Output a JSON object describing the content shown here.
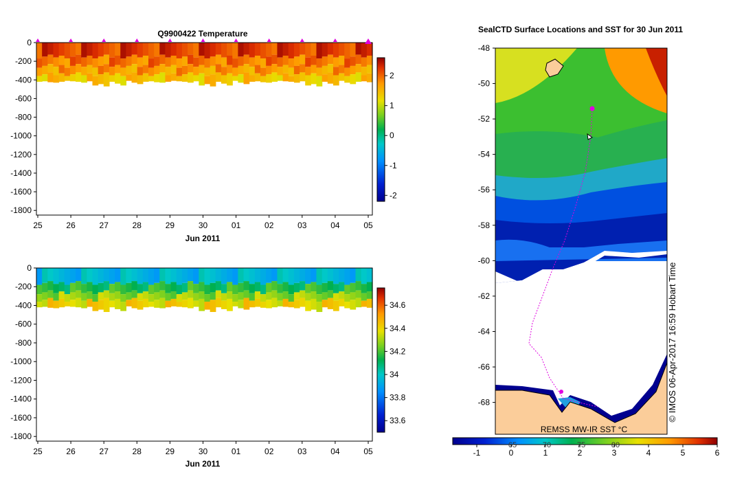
{
  "chart_data": [
    {
      "type": "heatmap",
      "title": "Q9900422  Temperature",
      "xlabel": "Jun 2011",
      "x_ticks": [
        "25",
        "26",
        "27",
        "28",
        "29",
        "30",
        "01",
        "02",
        "03",
        "04",
        "05"
      ],
      "y_ticks": [
        "0",
        "-200",
        "-400",
        "-600",
        "-800",
        "-1000",
        "-1200",
        "-1400",
        "-1600",
        "-1800"
      ],
      "ylim": [
        -1850,
        0
      ],
      "colorbar_ticks": [
        "2",
        "1",
        "0",
        "-1",
        "-2"
      ],
      "colorbar_range": [
        -2.2,
        2.6
      ],
      "profile_bottom_depth": [
        -420,
        -415,
        -425,
        -430,
        -420,
        -410,
        -415,
        -420,
        -430,
        -415,
        -460,
        -445,
        -470,
        -420,
        -440,
        -460,
        -410,
        -430,
        -445
      ],
      "layers": [
        {
          "top": 0,
          "bottom": -150,
          "value": 2.2
        },
        {
          "top": -150,
          "bottom": -250,
          "value": 1.9
        },
        {
          "top": -250,
          "bottom": -340,
          "value": 1.7
        },
        {
          "top": -340,
          "bottom": -450,
          "value": 1.4
        }
      ],
      "marker_count": 11
    },
    {
      "type": "heatmap",
      "title": "",
      "xlabel": "Jun 2011",
      "x_ticks": [
        "25",
        "26",
        "27",
        "28",
        "29",
        "30",
        "01",
        "02",
        "03",
        "04",
        "05"
      ],
      "y_ticks": [
        "0",
        "-200",
        "-400",
        "-600",
        "-800",
        "-1000",
        "-1200",
        "-1400",
        "-1600",
        "-1800"
      ],
      "ylim": [
        -1850,
        0
      ],
      "colorbar_ticks": [
        "34.6",
        "34.4",
        "34.2",
        "34",
        "33.8",
        "33.6"
      ],
      "colorbar_range": [
        33.5,
        34.75
      ],
      "layers": [
        {
          "top": 0,
          "bottom": -160,
          "value": 33.95
        },
        {
          "top": -160,
          "bottom": -260,
          "value": 34.15
        },
        {
          "top": -260,
          "bottom": -340,
          "value": 34.28
        },
        {
          "top": -340,
          "bottom": -450,
          "value": 34.4
        }
      ]
    },
    {
      "type": "heatmap",
      "title": "SealCTD Surface Locations and SST for 30 Jun 2011",
      "y_ticks": [
        "-48",
        "-50",
        "-52",
        "-54",
        "-56",
        "-58",
        "-60",
        "-62",
        "-64",
        "-66",
        "-68"
      ],
      "ylim": [
        -69.8,
        -48
      ],
      "colorbar_ticks": [
        "-1",
        "0",
        "1",
        "2",
        "3",
        "4",
        "5",
        "6"
      ],
      "colorbar_range": [
        -1.7,
        6
      ],
      "colorbar_label": "REMSS MW-IR SST °C",
      "colorbar_overlay_ticks": [
        "65",
        "70",
        "75",
        "80"
      ],
      "watermark": "© IMOS 06-Apr-2017 16:59 Hobart Time"
    }
  ]
}
